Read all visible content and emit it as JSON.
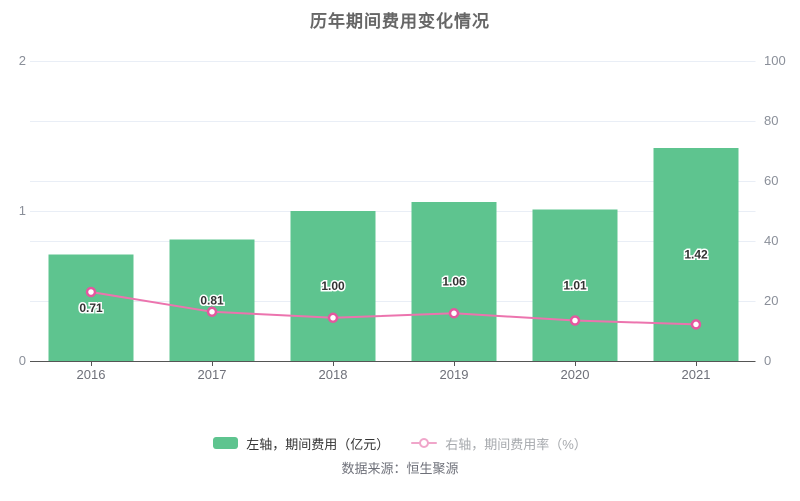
{
  "title": "历年期间费用变化情况",
  "source": "数据来源：恒生聚源",
  "legend": {
    "bar": {
      "label": "左轴，期间费用（亿元）",
      "color": "#5ec48f"
    },
    "line": {
      "label": "右轴，期间费用率（%）",
      "color": "#f0a6ca"
    }
  },
  "colors": {
    "bar": "#5ec48f",
    "line": "#ec74ae",
    "marker_stroke": "#e4579f",
    "marker_fill": "#ffffff",
    "grid": "#e9eef6",
    "axis": "#555555",
    "axis_label": "#8a8f99",
    "x_label": "#6e7079"
  },
  "chart_data": {
    "type": "bar+line",
    "title": "历年期间费用变化情况",
    "categories": [
      "2016",
      "2017",
      "2018",
      "2019",
      "2020",
      "2021"
    ],
    "series": [
      {
        "name": "左轴，期间费用（亿元）",
        "type": "bar",
        "axis": "left",
        "values": [
          0.71,
          0.81,
          1.0,
          1.06,
          1.01,
          1.42
        ],
        "labels": [
          "0.71",
          "0.81",
          "1.00",
          "1.06",
          "1.01",
          "1.42"
        ],
        "color": "#5ec48f"
      },
      {
        "name": "右轴，期间费用率（%）",
        "type": "line",
        "axis": "right",
        "values": [
          23,
          16.4,
          14.4,
          15.9,
          13.5,
          12.2
        ],
        "color": "#ec74ae",
        "marker_color": "#e4579f"
      }
    ],
    "left_axis": {
      "min": 0,
      "max": 2,
      "tick_values": [
        0,
        1,
        2
      ],
      "tick_labels": [
        "0",
        "1",
        "2"
      ]
    },
    "right_axis": {
      "min": 0,
      "max": 100,
      "tick_values": [
        0,
        20,
        40,
        60,
        80,
        100
      ],
      "tick_labels": [
        "0",
        "20",
        "40",
        "60",
        "80",
        "100"
      ]
    },
    "grid": true,
    "legend_position": "bottom"
  }
}
